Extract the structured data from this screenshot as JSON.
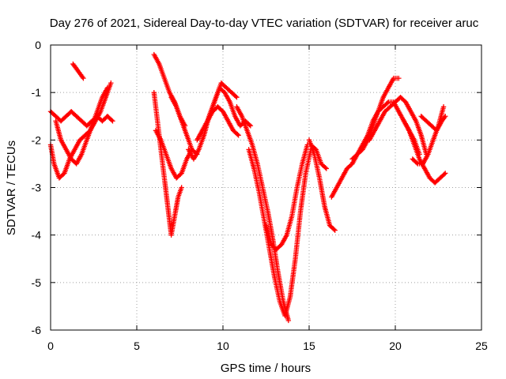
{
  "chart_data": {
    "type": "scatter",
    "title": "Day 276 of 2021, Sidereal Day-to-day VTEC variation (SDTVAR) for receiver aruc",
    "xlabel": "GPS time / hours",
    "ylabel": "SDTVAR / TECUs",
    "xlim": [
      0,
      25
    ],
    "ylim": [
      -6,
      0
    ],
    "xticks": [
      "0",
      "5",
      "10",
      "15",
      "20",
      "25"
    ],
    "yticks": [
      "0",
      "-1",
      "-2",
      "-3",
      "-4",
      "-5",
      "-6"
    ],
    "grid": true,
    "marker": "+",
    "color": "#ff0000",
    "series": [
      {
        "x": [
          0.0,
          0.3,
          0.6,
          0.9,
          1.2,
          1.5,
          1.8,
          2.1,
          2.4,
          2.7,
          3.0,
          3.3,
          3.6
        ],
        "y": [
          -1.4,
          -1.5,
          -1.6,
          -1.5,
          -1.4,
          -1.5,
          -1.6,
          -1.7,
          -1.6,
          -1.5,
          -1.6,
          -1.5,
          -1.6
        ]
      },
      {
        "x": [
          0.0,
          0.2,
          0.5,
          0.8,
          1.1,
          1.4,
          1.7,
          2.0,
          2.3,
          2.6,
          2.9,
          3.2,
          3.5
        ],
        "y": [
          -2.1,
          -2.5,
          -2.8,
          -2.7,
          -2.4,
          -2.2,
          -2.0,
          -1.9,
          -1.8,
          -1.6,
          -1.4,
          -1.1,
          -0.8
        ]
      },
      {
        "x": [
          0.3,
          0.6,
          0.9,
          1.2,
          1.5,
          1.8,
          2.1,
          2.4,
          2.7,
          3.0,
          3.3
        ],
        "y": [
          -1.6,
          -2.0,
          -2.2,
          -2.4,
          -2.5,
          -2.3,
          -2.0,
          -1.7,
          -1.4,
          -1.1,
          -0.9
        ]
      },
      {
        "x": [
          1.3,
          1.5,
          1.7,
          1.9
        ],
        "y": [
          -0.4,
          -0.5,
          -0.6,
          -0.7
        ]
      },
      {
        "x": [
          6.0,
          6.3,
          6.6,
          6.9,
          7.2,
          7.5,
          7.8
        ],
        "y": [
          -0.2,
          -0.4,
          -0.7,
          -1.0,
          -1.2,
          -1.5,
          -1.7
        ]
      },
      {
        "x": [
          6.0,
          6.2,
          6.4,
          6.6,
          6.8,
          7.0,
          7.2,
          7.4,
          7.6
        ],
        "y": [
          -1.0,
          -1.6,
          -2.2,
          -2.8,
          -3.4,
          -4.0,
          -3.6,
          -3.2,
          -3.0
        ]
      },
      {
        "x": [
          6.1,
          6.4,
          6.7,
          7.0,
          7.3,
          7.6,
          7.9,
          8.2
        ],
        "y": [
          -1.8,
          -2.0,
          -2.3,
          -2.6,
          -2.8,
          -2.7,
          -2.4,
          -2.2
        ]
      },
      {
        "x": [
          7.0,
          7.3,
          7.6,
          7.9,
          8.2,
          8.5
        ],
        "y": [
          -1.1,
          -1.3,
          -1.6,
          -1.9,
          -2.2,
          -2.3
        ]
      },
      {
        "x": [
          8.0,
          8.3,
          8.6,
          8.9,
          9.2,
          9.5,
          9.8,
          10.1,
          10.4,
          10.7,
          11.0,
          11.3,
          11.6
        ],
        "y": [
          -2.2,
          -2.4,
          -2.2,
          -1.9,
          -1.5,
          -1.2,
          -0.9,
          -1.0,
          -1.2,
          -1.5,
          -1.7,
          -1.6,
          -1.7
        ]
      },
      {
        "x": [
          8.5,
          8.8,
          9.1,
          9.4,
          9.7,
          10.0,
          10.3,
          10.6,
          10.9
        ],
        "y": [
          -2.0,
          -1.8,
          -1.6,
          -1.4,
          -1.3,
          -1.4,
          -1.6,
          -1.8,
          -1.9
        ]
      },
      {
        "x": [
          9.0,
          9.3,
          9.6,
          9.9,
          10.2,
          10.5,
          10.8
        ],
        "y": [
          -1.7,
          -1.4,
          -1.1,
          -0.8,
          -0.9,
          -1.0,
          -1.1
        ]
      },
      {
        "x": [
          10.8,
          11.1,
          11.4,
          11.7,
          12.0,
          12.3,
          12.6,
          12.9,
          13.2,
          13.5,
          13.8
        ],
        "y": [
          -1.3,
          -1.5,
          -1.8,
          -2.1,
          -2.5,
          -3.0,
          -3.5,
          -4.1,
          -4.8,
          -5.4,
          -5.8
        ]
      },
      {
        "x": [
          11.5,
          11.8,
          12.1,
          12.4,
          12.7,
          13.0,
          13.3,
          13.6,
          13.9,
          14.2,
          14.5,
          14.8,
          15.1
        ],
        "y": [
          -2.2,
          -2.6,
          -3.1,
          -3.7,
          -4.3,
          -4.9,
          -5.4,
          -5.7,
          -5.3,
          -4.5,
          -3.5,
          -2.7,
          -2.2
        ]
      },
      {
        "x": [
          12.5,
          12.8,
          13.1,
          13.4,
          13.7,
          14.0,
          14.3,
          14.6,
          14.9
        ],
        "y": [
          -3.8,
          -4.2,
          -4.3,
          -4.2,
          -4.0,
          -3.6,
          -3.0,
          -2.5,
          -2.1
        ]
      },
      {
        "x": [
          15.0,
          15.3,
          15.6,
          15.9,
          16.2,
          16.5
        ],
        "y": [
          -2.0,
          -2.3,
          -2.8,
          -3.4,
          -3.8,
          -3.9
        ]
      },
      {
        "x": [
          15.1,
          15.4,
          15.7,
          16.0
        ],
        "y": [
          -2.1,
          -2.2,
          -2.5,
          -2.6
        ]
      },
      {
        "x": [
          16.3,
          16.6,
          16.9,
          17.2,
          17.5,
          17.8,
          18.1,
          18.4,
          18.7,
          19.0,
          19.3,
          19.6,
          19.9,
          20.2
        ],
        "y": [
          -3.2,
          -3.0,
          -2.8,
          -2.6,
          -2.5,
          -2.3,
          -2.2,
          -2.0,
          -1.7,
          -1.4,
          -1.1,
          -0.9,
          -0.7,
          -0.7
        ]
      },
      {
        "x": [
          17.5,
          17.8,
          18.1,
          18.4,
          18.7,
          19.0,
          19.3,
          19.6,
          19.9,
          20.2,
          20.5,
          20.8,
          21.1,
          21.4
        ],
        "y": [
          -2.4,
          -2.3,
          -2.1,
          -1.9,
          -1.6,
          -1.4,
          -1.3,
          -1.2,
          -1.2,
          -1.4,
          -1.6,
          -1.8,
          -2.0,
          -2.3
        ]
      },
      {
        "x": [
          18.5,
          18.8,
          19.1,
          19.4,
          19.7,
          20.0,
          20.3,
          20.6,
          20.9,
          21.2,
          21.5,
          21.8
        ],
        "y": [
          -2.0,
          -1.8,
          -1.6,
          -1.4,
          -1.3,
          -1.2,
          -1.1,
          -1.2,
          -1.4,
          -1.6,
          -1.9,
          -2.3
        ]
      },
      {
        "x": [
          20.5,
          20.8,
          21.1,
          21.4,
          21.7,
          22.0,
          22.3,
          22.6,
          22.9
        ],
        "y": [
          -1.6,
          -1.8,
          -2.1,
          -2.4,
          -2.6,
          -2.8,
          -2.9,
          -2.8,
          -2.7
        ]
      },
      {
        "x": [
          21.0,
          21.3,
          21.6,
          21.9,
          22.2,
          22.5,
          22.8
        ],
        "y": [
          -2.4,
          -2.5,
          -2.5,
          -2.3,
          -2.0,
          -1.7,
          -1.3
        ]
      },
      {
        "x": [
          21.5,
          21.8,
          22.1,
          22.4,
          22.7,
          22.9
        ],
        "y": [
          -1.5,
          -1.6,
          -1.7,
          -1.8,
          -1.6,
          -1.5
        ]
      }
    ]
  }
}
